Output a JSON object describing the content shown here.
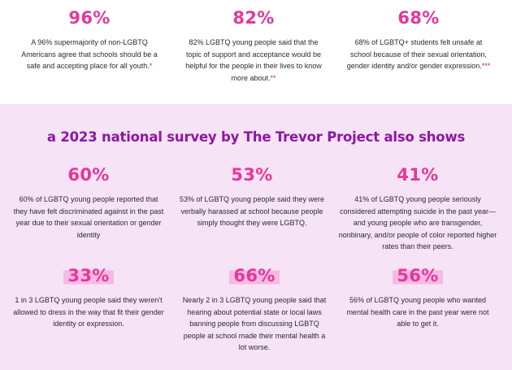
{
  "top_stats": [
    {
      "pct": "96%",
      "text": "A 96% supermajority of non-LGBTQ Americans agree that schools should be a safe and accepting place for all youth.",
      "mark": "*"
    },
    {
      "pct": "82%",
      "text": "82% LGBTQ young people said that the topic of support and acceptance would be helpful for the people in their lives to know more about.",
      "mark": "**"
    },
    {
      "pct": "68%",
      "text": "68% of LGBTQ+ students felt unsafe at school because of their sexual orientation, gender identity and/or gender expression.",
      "mark": "***"
    }
  ],
  "survey": {
    "heading": "a 2023 national survey by The Trevor Project also shows",
    "stats": [
      {
        "pct": "60%",
        "text": "60% of LGBTQ young people reported that they have felt discriminated against in the past year due to their sexual orientation or gender identity"
      },
      {
        "pct": "53%",
        "text": "53% of LGBTQ young people said they were verbally harassed at school because people simply thought they were LGBTQ."
      },
      {
        "pct": "41%",
        "text": "41% of LGBTQ young people seriously considered attempting suicide in the past year—and young people who are transgender, nonbinary, and/or people of color reported higher rates than their peers."
      },
      {
        "pct": "33%",
        "text": "1 in 3 LGBTQ young people said they weren't allowed to dress in the way that fit their gender identity or expression."
      },
      {
        "pct": "66%",
        "text": "Nearly 2 in 3 LGBTQ young people said that hearing about potential state or local laws banning people from discussing LGBTQ people at school made their mental health a lot worse."
      },
      {
        "pct": "56%",
        "text": "56% of LGBTQ young people who wanted mental health care in the past year were not able to get it."
      }
    ]
  },
  "colors": {
    "accent": "#e6379a",
    "heading": "#8f15a6",
    "highlight": "#f6b9e3",
    "band": "#f6e3f6"
  }
}
